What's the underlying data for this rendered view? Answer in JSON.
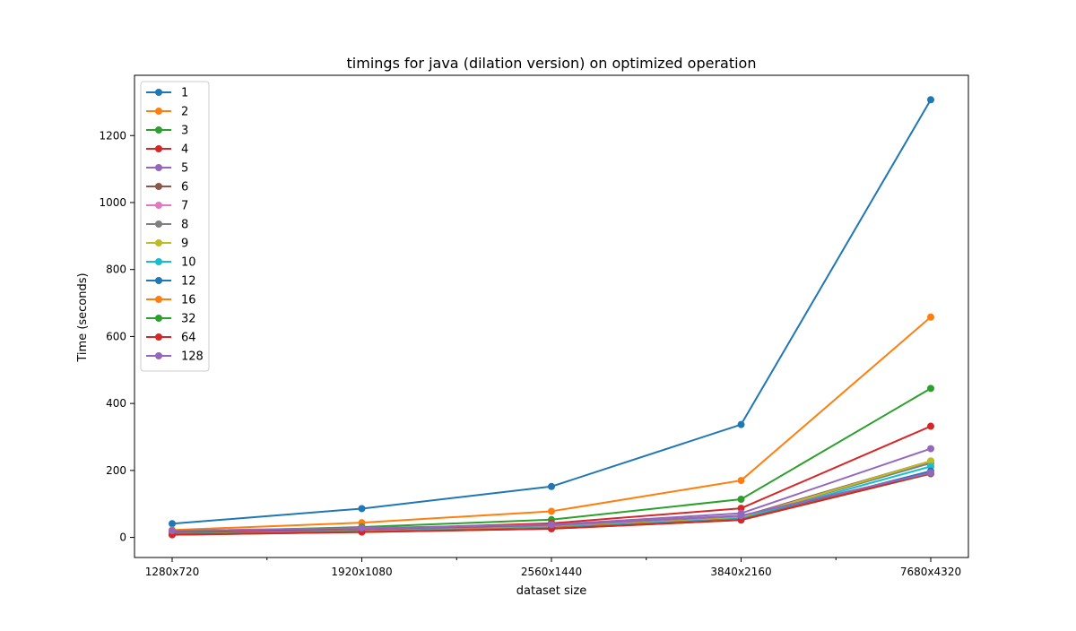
{
  "chart_data": {
    "type": "line",
    "title": "timings for java (dilation version) on optimized operation",
    "xlabel": "dataset size",
    "ylabel": "Time (seconds)",
    "categories": [
      "1280x720",
      "1920x1080",
      "2560x1440",
      "3840x2160",
      "7680x4320"
    ],
    "ylim": [
      -60,
      1380
    ],
    "yticks": [
      0,
      200,
      400,
      600,
      800,
      1000,
      1200
    ],
    "grid": false,
    "legend": "top-left",
    "series": [
      {
        "name": "1",
        "color": "#1f77b4",
        "values": [
          41,
          86,
          152,
          337,
          1307
        ]
      },
      {
        "name": "2",
        "color": "#ff7f0e",
        "values": [
          22,
          44,
          78,
          170,
          658
        ]
      },
      {
        "name": "3",
        "color": "#2ca02c",
        "values": [
          16,
          31,
          53,
          114,
          445
        ]
      },
      {
        "name": "4",
        "color": "#d62728",
        "values": [
          13,
          25,
          42,
          87,
          332
        ]
      },
      {
        "name": "5",
        "color": "#9467bd",
        "values": [
          12,
          22,
          38,
          72,
          265
        ]
      },
      {
        "name": "6",
        "color": "#8c564b",
        "values": [
          11,
          20,
          34,
          62,
          228
        ]
      },
      {
        "name": "7",
        "color": "#e377c2",
        "values": [
          10,
          19,
          32,
          60,
          225
        ]
      },
      {
        "name": "8",
        "color": "#7f7f7f",
        "values": [
          10,
          19,
          31,
          59,
          222
        ]
      },
      {
        "name": "9",
        "color": "#bcbd22",
        "values": [
          10,
          18,
          30,
          58,
          228
        ]
      },
      {
        "name": "10",
        "color": "#17becf",
        "values": [
          9,
          18,
          29,
          56,
          212
        ]
      },
      {
        "name": "12",
        "color": "#1f77b4",
        "values": [
          9,
          17,
          28,
          54,
          198
        ]
      },
      {
        "name": "16",
        "color": "#ff7f0e",
        "values": [
          8,
          17,
          27,
          53,
          192
        ]
      },
      {
        "name": "32",
        "color": "#2ca02c",
        "values": [
          8,
          16,
          26,
          52,
          190
        ]
      },
      {
        "name": "64",
        "color": "#d62728",
        "values": [
          8,
          16,
          26,
          52,
          191
        ]
      },
      {
        "name": "128",
        "color": "#9467bd",
        "values": [
          20,
          28,
          38,
          65,
          193
        ]
      }
    ]
  }
}
